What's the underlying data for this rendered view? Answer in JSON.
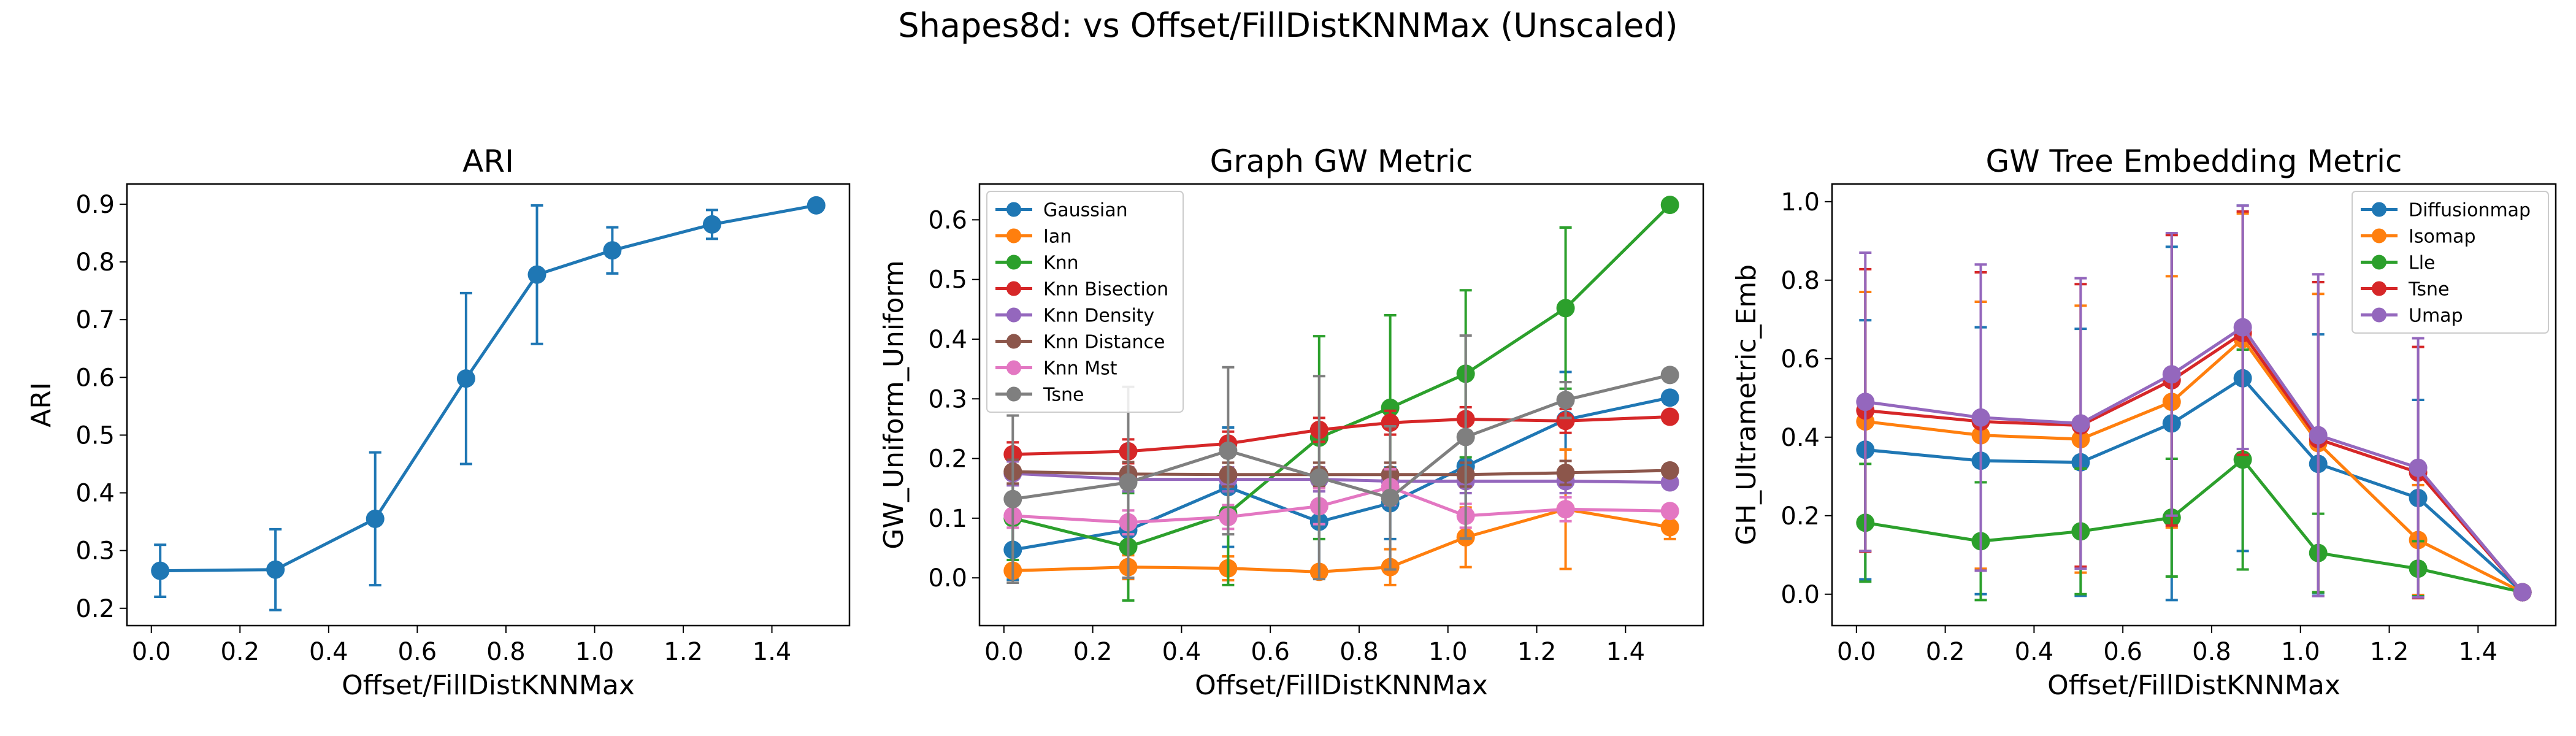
{
  "figure": {
    "suptitle": "Shapes8d: vs Offset/FillDistKNNMax (Unscaled)"
  },
  "chart_data": [
    {
      "type": "line",
      "title": "ARI",
      "xlabel": "Offset/FillDistKNNMax",
      "ylabel": "ARI",
      "xlim": [
        -0.055,
        1.575
      ],
      "ylim": [
        0.17,
        0.935
      ],
      "xticks": [
        0.0,
        0.2,
        0.4,
        0.6,
        0.8,
        1.0,
        1.2,
        1.4
      ],
      "yticks": [
        0.2,
        0.3,
        0.4,
        0.5,
        0.6,
        0.7,
        0.8,
        0.9
      ],
      "legend": null,
      "x": [
        0.02,
        0.28,
        0.505,
        0.71,
        0.87,
        1.04,
        1.265,
        1.5
      ],
      "series": [
        {
          "name": "",
          "color": "#1f77b4",
          "values": [
            0.265,
            0.267,
            0.355,
            0.598,
            0.778,
            0.82,
            0.865,
            0.898
          ],
          "err": [
            0.045,
            0.07,
            0.115,
            0.148,
            0.12,
            0.04,
            0.025,
            0.006
          ]
        }
      ]
    },
    {
      "type": "line",
      "title": "Graph GW Metric",
      "xlabel": "Offset/FillDistKNNMax",
      "ylabel": "GW_Uniform_Uniform",
      "xlim": [
        -0.055,
        1.575
      ],
      "ylim": [
        -0.08,
        0.66
      ],
      "xticks": [
        0.0,
        0.2,
        0.4,
        0.6,
        0.8,
        1.0,
        1.2,
        1.4
      ],
      "yticks": [
        0.0,
        0.1,
        0.2,
        0.3,
        0.4,
        0.5,
        0.6
      ],
      "legend": "top-left",
      "x": [
        0.02,
        0.28,
        0.505,
        0.71,
        0.87,
        1.04,
        1.265,
        1.5
      ],
      "series": [
        {
          "name": "Gaussian",
          "color": "#1f77b4",
          "values": [
            0.047,
            0.08,
            0.152,
            0.094,
            0.125,
            0.187,
            0.265,
            0.302
          ],
          "err": [
            0.05,
            0.08,
            0.1,
            0.08,
            0.06,
            0.08,
            0.08,
            0.01
          ]
        },
        {
          "name": "Ian",
          "color": "#ff7f0e",
          "values": [
            0.012,
            0.018,
            0.016,
            0.01,
            0.018,
            0.068,
            0.115,
            0.085
          ],
          "err": [
            0.01,
            0.02,
            0.02,
            0.01,
            0.03,
            0.05,
            0.1,
            0.02
          ]
        },
        {
          "name": "Knn",
          "color": "#2ca02c",
          "values": [
            0.1,
            0.052,
            0.108,
            0.235,
            0.285,
            0.342,
            0.452,
            0.625
          ],
          "err": [
            0.07,
            0.09,
            0.12,
            0.17,
            0.155,
            0.14,
            0.135,
            0.005
          ]
        },
        {
          "name": "Knn Bisection",
          "color": "#d62728",
          "values": [
            0.207,
            0.212,
            0.225,
            0.248,
            0.26,
            0.266,
            0.263,
            0.27
          ],
          "err": [
            0.02,
            0.02,
            0.02,
            0.02,
            0.02,
            0.02,
            0.02,
            0.01
          ]
        },
        {
          "name": "Knn Density",
          "color": "#9467bd",
          "values": [
            0.175,
            0.165,
            0.165,
            0.165,
            0.162,
            0.162,
            0.162,
            0.16
          ],
          "err": [
            0.02,
            0.02,
            0.02,
            0.02,
            0.02,
            0.02,
            0.02,
            0.01
          ]
        },
        {
          "name": "Knn Distance",
          "color": "#8c564b",
          "values": [
            0.178,
            0.174,
            0.173,
            0.173,
            0.173,
            0.173,
            0.176,
            0.18
          ],
          "err": [
            0.02,
            0.02,
            0.02,
            0.02,
            0.02,
            0.02,
            0.02,
            0.01
          ]
        },
        {
          "name": "Knn Mst",
          "color": "#e377c2",
          "values": [
            0.104,
            0.093,
            0.102,
            0.12,
            0.152,
            0.104,
            0.115,
            0.112
          ],
          "err": [
            0.02,
            0.02,
            0.02,
            0.03,
            0.03,
            0.02,
            0.02,
            0.01
          ]
        },
        {
          "name": "Tsne",
          "color": "#7f7f7f",
          "values": [
            0.132,
            0.16,
            0.213,
            0.168,
            0.134,
            0.236,
            0.298,
            0.34
          ],
          "err": [
            0.14,
            0.16,
            0.14,
            0.17,
            0.12,
            0.17,
            0.03,
            0.01
          ]
        }
      ]
    },
    {
      "type": "line",
      "title": "GW Tree Embedding Metric",
      "xlabel": "Offset/FillDistKNNMax",
      "ylabel": "GH_Ultrametric_Emb",
      "xlim": [
        -0.055,
        1.575
      ],
      "ylim": [
        -0.08,
        1.045
      ],
      "xticks": [
        0.0,
        0.2,
        0.4,
        0.6,
        0.8,
        1.0,
        1.2,
        1.4
      ],
      "yticks": [
        0.0,
        0.2,
        0.4,
        0.6,
        0.8,
        1.0
      ],
      "legend": "top-right",
      "x": [
        0.02,
        0.28,
        0.505,
        0.71,
        0.87,
        1.04,
        1.265,
        1.5
      ],
      "series": [
        {
          "name": "Diffusionmap",
          "color": "#1f77b4",
          "values": [
            0.368,
            0.34,
            0.336,
            0.435,
            0.55,
            0.332,
            0.245,
            0.005
          ],
          "err": [
            0.33,
            0.34,
            0.34,
            0.45,
            0.44,
            0.33,
            0.25,
            0.005
          ]
        },
        {
          "name": "Isomap",
          "color": "#ff7f0e",
          "values": [
            0.44,
            0.405,
            0.395,
            0.49,
            0.65,
            0.385,
            0.138,
            0.005
          ],
          "err": [
            0.33,
            0.34,
            0.34,
            0.32,
            0.32,
            0.38,
            0.14,
            0.005
          ]
        },
        {
          "name": "Lle",
          "color": "#2ca02c",
          "values": [
            0.182,
            0.135,
            0.16,
            0.195,
            0.343,
            0.105,
            0.065,
            0.005
          ],
          "err": [
            0.15,
            0.15,
            0.16,
            0.15,
            0.28,
            0.1,
            0.07,
            0.005
          ]
        },
        {
          "name": "Tsne",
          "color": "#d62728",
          "values": [
            0.468,
            0.44,
            0.43,
            0.545,
            0.665,
            0.395,
            0.31,
            0.005
          ],
          "err": [
            0.36,
            0.38,
            0.36,
            0.37,
            0.31,
            0.4,
            0.32,
            0.005
          ]
        },
        {
          "name": "Umap",
          "color": "#9467bd",
          "values": [
            0.49,
            0.45,
            0.435,
            0.56,
            0.68,
            0.405,
            0.322,
            0.005
          ],
          "err": [
            0.38,
            0.39,
            0.37,
            0.36,
            0.31,
            0.41,
            0.33,
            0.005
          ]
        }
      ]
    }
  ]
}
